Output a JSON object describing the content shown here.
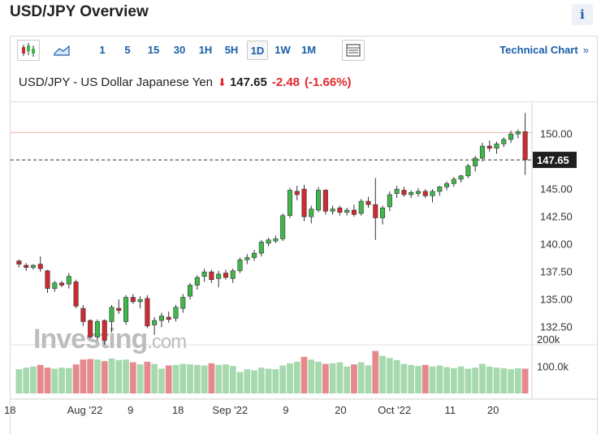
{
  "header": {
    "title": "USD/JPY Overview",
    "info_icon": "i"
  },
  "toolbar": {
    "timeframes": [
      "1",
      "5",
      "15",
      "30",
      "1H",
      "5H",
      "1D",
      "1W",
      "1M"
    ],
    "active_timeframe": "1D",
    "technical_chart_label": "Technical Chart",
    "technical_chart_chevron": "»"
  },
  "quote": {
    "name": "USD/JPY - US Dollar Japanese Yen",
    "price": "147.65",
    "change": "-2.48",
    "change_pct": "(-1.66%)",
    "direction": "down"
  },
  "chart_data": {
    "type": "candlestick",
    "current_price_label": "147.65",
    "prior_close": 150.13,
    "y_ticks": [
      "150.00",
      "147.50",
      "145.00",
      "142.50",
      "140.00",
      "137.50",
      "135.00",
      "132.50"
    ],
    "y_range": [
      130.9,
      152.8
    ],
    "volume_ticks": [
      "200k",
      "100.0k"
    ],
    "x_ticks": [
      "18",
      "Aug '22",
      "9",
      "18",
      "Sep '22",
      "9",
      "20",
      "Oct '22",
      "11",
      "20"
    ],
    "watermark": "Investing.com",
    "up_color": "#3fb74a",
    "down_color": "#cf2a31",
    "candles": [
      [
        138.5,
        138.6,
        137.9,
        138.2
      ],
      [
        138.1,
        138.3,
        137.6,
        137.9
      ],
      [
        137.9,
        138.2,
        137.7,
        138.1
      ],
      [
        138.2,
        138.9,
        137.5,
        137.8
      ],
      [
        137.6,
        137.7,
        135.6,
        136.0
      ],
      [
        136.0,
        136.7,
        135.7,
        136.5
      ],
      [
        136.5,
        136.7,
        136.1,
        136.3
      ],
      [
        136.4,
        137.4,
        136.0,
        137.1
      ],
      [
        136.6,
        136.8,
        134.2,
        134.4
      ],
      [
        134.2,
        134.5,
        132.6,
        133.0
      ],
      [
        133.1,
        133.2,
        131.5,
        131.6
      ],
      [
        131.6,
        133.2,
        131.3,
        133.0
      ],
      [
        133.1,
        133.2,
        130.9,
        131.3
      ],
      [
        133.0,
        134.5,
        132.0,
        134.3
      ],
      [
        134.2,
        135.0,
        133.7,
        134.0
      ],
      [
        133.0,
        135.4,
        132.7,
        135.2
      ],
      [
        135.2,
        135.5,
        134.6,
        134.8
      ],
      [
        134.8,
        135.3,
        134.2,
        135.0
      ],
      [
        135.1,
        135.4,
        132.4,
        132.6
      ],
      [
        132.7,
        133.4,
        131.8,
        133.1
      ],
      [
        133.1,
        133.8,
        132.5,
        133.5
      ],
      [
        133.4,
        133.9,
        132.9,
        133.2
      ],
      [
        133.3,
        134.5,
        133.0,
        134.3
      ],
      [
        134.2,
        135.5,
        133.8,
        135.2
      ],
      [
        135.3,
        136.5,
        135.0,
        136.3
      ],
      [
        136.3,
        137.2,
        135.9,
        137.0
      ],
      [
        137.1,
        137.8,
        136.6,
        137.5
      ],
      [
        137.5,
        137.7,
        136.5,
        136.8
      ],
      [
        136.9,
        137.6,
        136.1,
        137.3
      ],
      [
        137.4,
        137.7,
        136.8,
        137.0
      ],
      [
        136.9,
        137.8,
        136.5,
        137.6
      ],
      [
        137.6,
        138.8,
        137.4,
        138.6
      ],
      [
        138.6,
        139.1,
        138.2,
        138.8
      ],
      [
        138.8,
        139.5,
        138.5,
        139.2
      ],
      [
        139.2,
        140.4,
        138.9,
        140.2
      ],
      [
        140.1,
        140.6,
        139.8,
        140.4
      ],
      [
        140.3,
        140.8,
        140.1,
        140.5
      ],
      [
        140.5,
        142.8,
        140.3,
        142.6
      ],
      [
        142.6,
        145.1,
        142.4,
        144.9
      ],
      [
        144.8,
        145.3,
        144.0,
        144.5
      ],
      [
        145.0,
        145.4,
        142.1,
        142.5
      ],
      [
        142.5,
        143.5,
        141.9,
        143.2
      ],
      [
        143.1,
        145.2,
        142.9,
        144.9
      ],
      [
        144.9,
        145.0,
        142.7,
        143.0
      ],
      [
        143.0,
        143.5,
        142.7,
        143.2
      ],
      [
        143.3,
        143.5,
        142.6,
        142.9
      ],
      [
        142.9,
        143.3,
        142.6,
        143.1
      ],
      [
        143.1,
        143.6,
        142.5,
        142.7
      ],
      [
        142.8,
        144.1,
        142.6,
        143.9
      ],
      [
        143.9,
        144.3,
        143.3,
        143.6
      ],
      [
        143.6,
        146.0,
        140.4,
        142.4
      ],
      [
        142.4,
        143.5,
        141.8,
        143.3
      ],
      [
        143.4,
        144.8,
        143.0,
        144.5
      ],
      [
        144.6,
        145.3,
        144.2,
        145.0
      ],
      [
        144.9,
        145.2,
        144.3,
        144.5
      ],
      [
        144.5,
        144.9,
        144.2,
        144.7
      ],
      [
        144.6,
        145.1,
        144.3,
        144.8
      ],
      [
        144.8,
        145.0,
        144.2,
        144.4
      ],
      [
        144.4,
        145.0,
        143.8,
        144.8
      ],
      [
        144.8,
        145.3,
        144.4,
        145.2
      ],
      [
        145.2,
        145.7,
        144.9,
        145.5
      ],
      [
        145.5,
        146.1,
        145.2,
        145.9
      ],
      [
        145.9,
        146.3,
        145.6,
        146.2
      ],
      [
        146.2,
        147.3,
        146.0,
        147.1
      ],
      [
        147.1,
        148.0,
        146.6,
        147.8
      ],
      [
        147.8,
        149.2,
        147.5,
        148.9
      ],
      [
        148.9,
        149.4,
        148.4,
        148.7
      ],
      [
        148.7,
        149.3,
        148.2,
        149.1
      ],
      [
        149.1,
        149.7,
        148.8,
        149.5
      ],
      [
        149.5,
        150.3,
        149.2,
        150.0
      ],
      [
        150.0,
        150.4,
        149.6,
        150.2
      ],
      [
        150.2,
        151.9,
        146.3,
        147.65
      ]
    ],
    "volumes": [
      [
        90,
        "up"
      ],
      [
        96,
        "up"
      ],
      [
        100,
        "up"
      ],
      [
        106,
        "down"
      ],
      [
        96,
        "down"
      ],
      [
        92,
        "up"
      ],
      [
        96,
        "up"
      ],
      [
        94,
        "up"
      ],
      [
        108,
        "down"
      ],
      [
        126,
        "down"
      ],
      [
        128,
        "down"
      ],
      [
        126,
        "up"
      ],
      [
        120,
        "down"
      ],
      [
        130,
        "up"
      ],
      [
        124,
        "up"
      ],
      [
        126,
        "up"
      ],
      [
        116,
        "down"
      ],
      [
        108,
        "up"
      ],
      [
        118,
        "down"
      ],
      [
        110,
        "up"
      ],
      [
        92,
        "up"
      ],
      [
        104,
        "down"
      ],
      [
        106,
        "up"
      ],
      [
        110,
        "up"
      ],
      [
        108,
        "up"
      ],
      [
        106,
        "up"
      ],
      [
        104,
        "up"
      ],
      [
        112,
        "down"
      ],
      [
        106,
        "up"
      ],
      [
        108,
        "up"
      ],
      [
        102,
        "up"
      ],
      [
        80,
        "up"
      ],
      [
        90,
        "up"
      ],
      [
        86,
        "up"
      ],
      [
        96,
        "up"
      ],
      [
        92,
        "up"
      ],
      [
        90,
        "up"
      ],
      [
        104,
        "up"
      ],
      [
        112,
        "up"
      ],
      [
        118,
        "up"
      ],
      [
        136,
        "down"
      ],
      [
        126,
        "up"
      ],
      [
        118,
        "up"
      ],
      [
        110,
        "down"
      ],
      [
        112,
        "up"
      ],
      [
        116,
        "up"
      ],
      [
        100,
        "up"
      ],
      [
        108,
        "down"
      ],
      [
        116,
        "up"
      ],
      [
        104,
        "up"
      ],
      [
        158,
        "down"
      ],
      [
        140,
        "up"
      ],
      [
        132,
        "up"
      ],
      [
        124,
        "up"
      ],
      [
        110,
        "up"
      ],
      [
        106,
        "up"
      ],
      [
        102,
        "up"
      ],
      [
        106,
        "down"
      ],
      [
        100,
        "up"
      ],
      [
        104,
        "up"
      ],
      [
        98,
        "up"
      ],
      [
        94,
        "up"
      ],
      [
        100,
        "up"
      ],
      [
        92,
        "up"
      ],
      [
        96,
        "up"
      ],
      [
        110,
        "up"
      ],
      [
        100,
        "up"
      ],
      [
        96,
        "up"
      ],
      [
        94,
        "up"
      ],
      [
        90,
        "up"
      ],
      [
        94,
        "up"
      ],
      [
        92,
        "down"
      ]
    ]
  }
}
